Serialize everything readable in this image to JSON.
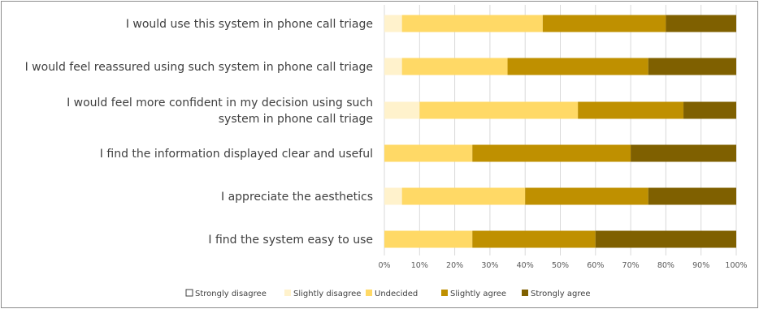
{
  "chart_data": {
    "type": "bar",
    "orientation": "horizontal",
    "stacked": true,
    "title": "",
    "xlabel": "",
    "ylabel": "",
    "xlim": [
      0,
      100
    ],
    "x_ticks": [
      "0%",
      "10%",
      "20%",
      "30%",
      "40%",
      "50%",
      "60%",
      "70%",
      "80%",
      "90%",
      "100%"
    ],
    "grid": true,
    "legend_position": "bottom",
    "categories": [
      [
        "I would use this system in phone call triage"
      ],
      [
        "I would feel reassured using such system in phone call triage"
      ],
      [
        "I would feel more confident in my decision using such",
        "system in phone call triage"
      ],
      [
        "I find the information displayed clear and useful"
      ],
      [
        "I appreciate the aesthetics"
      ],
      [
        "I find the system easy to use"
      ]
    ],
    "series": [
      {
        "name": "Strongly disagree",
        "color": "#ffffff",
        "values": [
          0,
          0,
          0,
          0,
          0,
          0
        ]
      },
      {
        "name": "Slightly disagree",
        "color": "#fff2cc",
        "values": [
          5,
          5,
          10,
          0,
          5,
          0
        ]
      },
      {
        "name": "Undecided",
        "color": "#ffd966",
        "values": [
          40,
          30,
          45,
          25,
          35,
          25
        ]
      },
      {
        "name": "Slightly agree",
        "color": "#bf9000",
        "values": [
          35,
          40,
          30,
          45,
          35,
          35
        ]
      },
      {
        "name": "Strongly agree",
        "color": "#7f6000",
        "values": [
          20,
          25,
          15,
          30,
          25,
          40
        ]
      }
    ]
  }
}
